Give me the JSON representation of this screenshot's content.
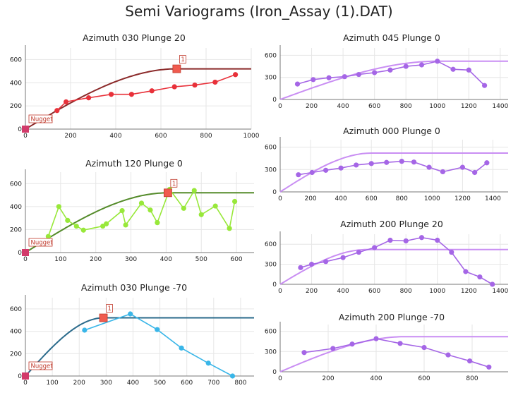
{
  "title": "Semi Variograms (Iron_Assay (1).DAT)",
  "chart_data": [
    {
      "type": "line",
      "title": "Azimuth 030 Plunge 20",
      "model_color": "#8b2a2a",
      "exp_color": "#e8313a",
      "xlim": [
        0,
        1000
      ],
      "xticks": [
        0,
        200,
        400,
        600,
        800,
        1000
      ],
      "ylim": [
        0,
        700
      ],
      "yticks": [
        0,
        200,
        400,
        600
      ],
      "sill": 520,
      "range": 670,
      "nugget": 0,
      "nugget_label": "Nugget",
      "range_label": "1",
      "experimental": {
        "x": [
          140,
          180,
          280,
          380,
          470,
          560,
          660,
          750,
          840,
          930
        ],
        "y": [
          160,
          235,
          270,
          300,
          300,
          330,
          365,
          380,
          405,
          470
        ]
      }
    },
    {
      "type": "line",
      "title": "Azimuth 045 Plunge 0",
      "model_color": "#c98ef3",
      "exp_color": "#a566e6",
      "xlim": [
        0,
        1450
      ],
      "xticks": [
        0,
        200,
        400,
        600,
        800,
        1000,
        1200,
        1400
      ],
      "ylim": [
        0,
        700
      ],
      "yticks": [
        0,
        300,
        600
      ],
      "sill": 520,
      "range": 1000,
      "nugget": 0,
      "experimental": {
        "x": [
          110,
          210,
          310,
          410,
          500,
          600,
          700,
          800,
          900,
          1000,
          1100,
          1200,
          1300
        ],
        "y": [
          210,
          270,
          295,
          310,
          340,
          365,
          400,
          450,
          470,
          520,
          410,
          400,
          190
        ]
      }
    },
    {
      "type": "line",
      "title": "Azimuth 120 Plunge 0",
      "model_color": "#548b2a",
      "exp_color": "#98e83a",
      "xlim": [
        0,
        650
      ],
      "xticks": [
        0,
        100,
        200,
        300,
        400,
        500,
        600
      ],
      "ylim": [
        0,
        700
      ],
      "yticks": [
        0,
        200,
        400,
        600
      ],
      "sill": 520,
      "range": 405,
      "nugget": 0,
      "nugget_label": "Nugget",
      "range_label": "1",
      "experimental": {
        "x": [
          65,
          95,
          120,
          145,
          165,
          220,
          230,
          275,
          285,
          330,
          355,
          375,
          410,
          450,
          480,
          500,
          540,
          580,
          595
        ],
        "y": [
          140,
          400,
          280,
          230,
          195,
          230,
          250,
          365,
          240,
          430,
          370,
          260,
          550,
          385,
          540,
          330,
          405,
          210,
          445
        ]
      }
    },
    {
      "type": "line",
      "title": "Azimuth 000 Plunge 0",
      "model_color": "#c98ef3",
      "exp_color": "#a566e6",
      "xlim": [
        0,
        1500
      ],
      "xticks": [
        0,
        200,
        400,
        600,
        800,
        1000,
        1200,
        1400
      ],
      "ylim": [
        0,
        700
      ],
      "yticks": [
        0,
        300,
        600
      ],
      "sill": 520,
      "range": 600,
      "nugget": 0,
      "experimental": {
        "x": [
          120,
          210,
          300,
          400,
          500,
          600,
          700,
          800,
          880,
          980,
          1070,
          1200,
          1280,
          1360
        ],
        "y": [
          230,
          260,
          290,
          320,
          360,
          380,
          395,
          410,
          400,
          330,
          270,
          330,
          260,
          390
        ]
      }
    },
    {
      "type": "line",
      "title": "Azimuth 030 Plunge -70",
      "model_color": "#2a6a8b",
      "exp_color": "#3ab6e8",
      "xlim": [
        0,
        850
      ],
      "xticks": [
        0,
        100,
        200,
        300,
        400,
        500,
        600,
        700,
        800
      ],
      "ylim": [
        0,
        700
      ],
      "yticks": [
        0,
        200,
        400,
        600
      ],
      "sill": 520,
      "range": 290,
      "nugget": 0,
      "nugget_label": "Nugget",
      "range_label": "1",
      "experimental": {
        "x": [
          220,
          390,
          490,
          580,
          680,
          770
        ],
        "y": [
          410,
          555,
          415,
          250,
          115,
          0
        ]
      }
    },
    {
      "type": "line",
      "title": "Azimuth 200 Plunge 20",
      "model_color": "#c98ef3",
      "exp_color": "#a566e6",
      "xlim": [
        0,
        1450
      ],
      "xticks": [
        0,
        200,
        400,
        600,
        800,
        1000,
        1200,
        1400
      ],
      "ylim": [
        0,
        750
      ],
      "yticks": [
        0,
        300,
        600
      ],
      "sill": 520,
      "range": 550,
      "nugget": 0,
      "experimental": {
        "x": [
          130,
          200,
          290,
          400,
          500,
          600,
          700,
          800,
          900,
          1000,
          1090,
          1180,
          1270,
          1350
        ],
        "y": [
          250,
          300,
          340,
          400,
          480,
          550,
          660,
          650,
          700,
          660,
          480,
          190,
          110,
          0
        ]
      }
    },
    {
      "type": "line",
      "title": "Azimuth 200 Plunge -70",
      "model_color": "#c98ef3",
      "exp_color": "#a566e6",
      "xlim": [
        0,
        950
      ],
      "xticks": [
        0,
        200,
        400,
        600,
        800
      ],
      "ylim": [
        0,
        700
      ],
      "yticks": [
        0,
        300,
        600
      ],
      "sill": 520,
      "range": 520,
      "nugget": 0,
      "experimental": {
        "x": [
          100,
          220,
          300,
          400,
          500,
          600,
          700,
          790,
          870
        ],
        "y": [
          285,
          345,
          410,
          490,
          420,
          360,
          250,
          160,
          70
        ]
      }
    }
  ]
}
